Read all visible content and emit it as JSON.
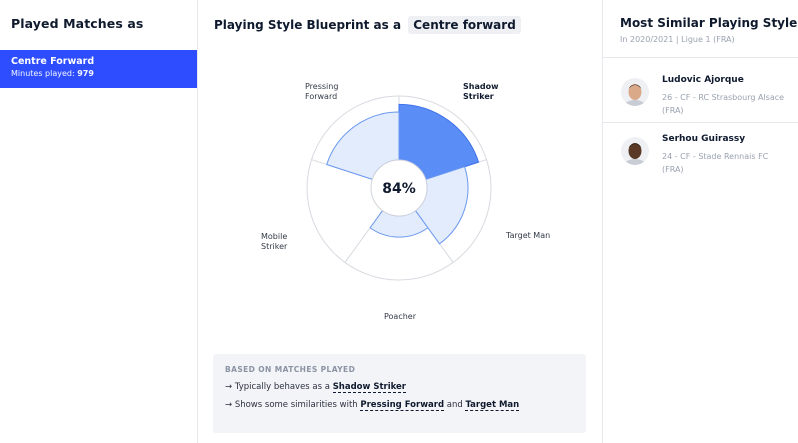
{
  "left": {
    "title": "Played Matches as",
    "items": [
      {
        "position": "Centre Forward",
        "minutes_label": "Minutes played:",
        "minutes": "979"
      }
    ]
  },
  "center": {
    "title_prefix": "Playing Style Blueprint as a",
    "role": "Centre forward",
    "score": "84%",
    "axes": [
      {
        "line1": "Shadow",
        "line2": "Striker"
      },
      {
        "line1": "Target Man",
        "line2": ""
      },
      {
        "line1": "Poacher",
        "line2": ""
      },
      {
        "line1": "Mobile",
        "line2": "Striker"
      },
      {
        "line1": "Pressing",
        "line2": "Forward"
      }
    ],
    "chart_data": {
      "type": "radar",
      "categories": [
        "Shadow Striker",
        "Target Man",
        "Poacher",
        "Mobile Striker",
        "Pressing Forward"
      ],
      "values": [
        0.87,
        0.64,
        0.33,
        0.0,
        0.75
      ],
      "highlight": "Shadow Striker",
      "center_label": "84%"
    },
    "info": {
      "heading": "BASED ON MATCHES PLAYED",
      "line1_prefix": "→ Typically behaves as a",
      "line1_link": "Shadow Striker",
      "line2_prefix": "→ Shows some similarities with",
      "line2_link1": "Pressing Forward",
      "line2_and": "and",
      "line2_link2": "Target Man"
    }
  },
  "right": {
    "title": "Most Similar Playing Style",
    "subtitle": "In 2020/2021 | Ligue 1 (FRA)",
    "players": [
      {
        "name": "Ludovic Ajorque",
        "meta": "26 - CF - RC Strasbourg Alsace (FRA)",
        "avatar_icon": "player-photo-icon",
        "skin": "#d9a98a",
        "hair": "#2e2218"
      },
      {
        "name": "Serhou Guirassy",
        "meta": "24 - CF - Stade Rennais FC (FRA)",
        "avatar_icon": "player-photo-icon",
        "skin": "#5a3a26",
        "hair": "#1a120c"
      }
    ]
  },
  "colors": {
    "accent": "#2d4dff",
    "radar_highlight": "#5b8df7",
    "radar_fill": "#e3ecfd",
    "radar_stroke": "#6b98ee",
    "grid": "#d7dae0"
  }
}
